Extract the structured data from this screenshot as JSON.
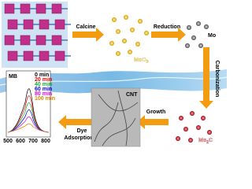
{
  "steps": {
    "calcine": "Calcine",
    "reduction": "Reduction",
    "carbonization": "Carbonization",
    "growth": "Growth",
    "dye_adsorption": [
      "Dye",
      "Adsorption"
    ]
  },
  "products": {
    "moo3": {
      "text": "MoO",
      "sub": "3"
    },
    "mo": "Mo",
    "mo2c": {
      "text": "Mo",
      "sub": "2",
      "tail": "C"
    },
    "cnt": "CNT"
  },
  "inset": {
    "title": "MB",
    "legend": [
      "0 min",
      "20 min",
      "40 min",
      "60 min",
      "80 min",
      "100 min"
    ],
    "xticks": [
      "500",
      "600",
      "700",
      "800"
    ]
  }
}
